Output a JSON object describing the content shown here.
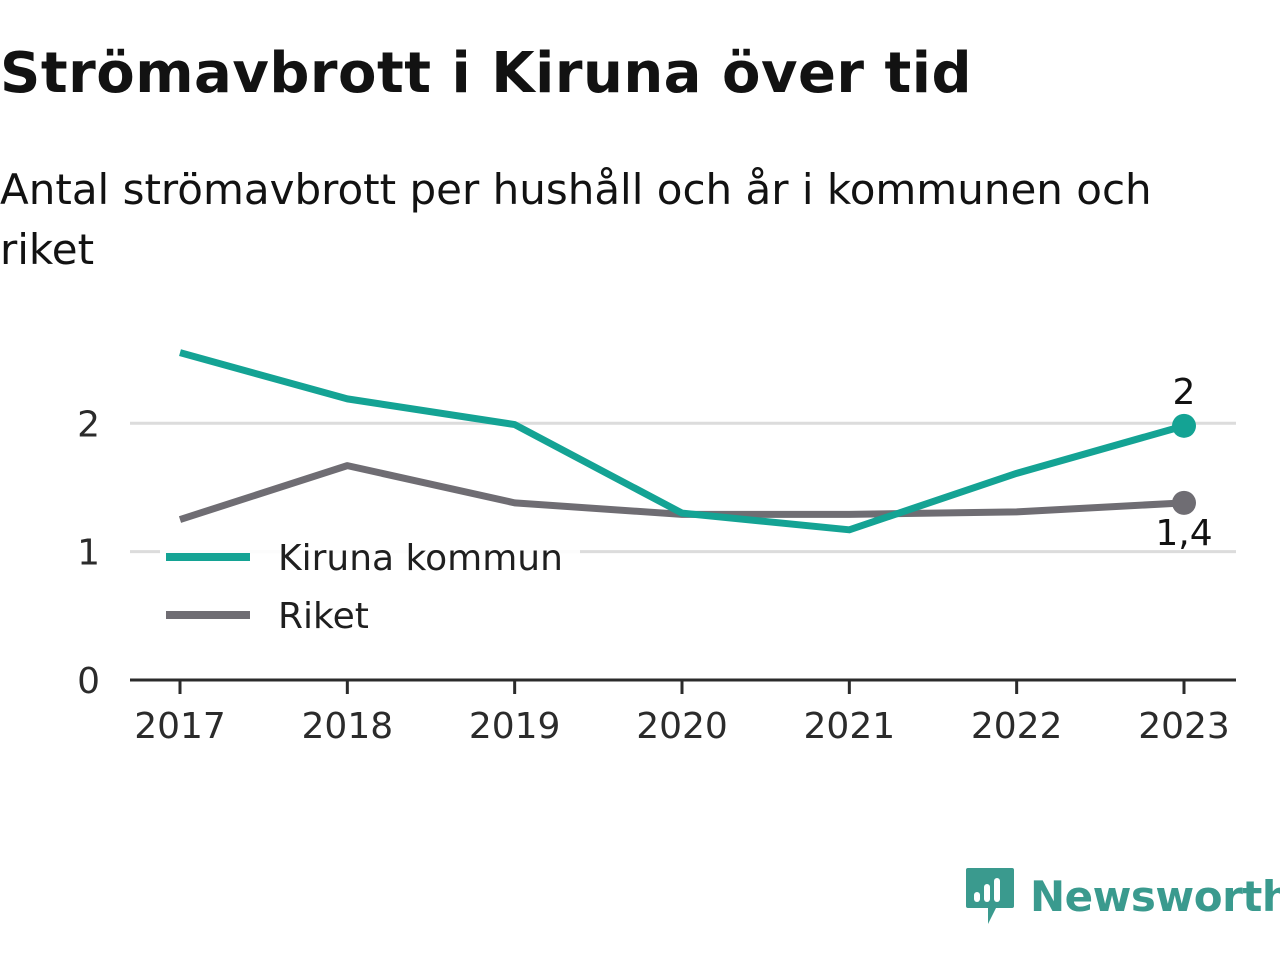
{
  "title": "Strömavbrott i Kiruna över tid",
  "subtitle": "Antal strömavbrott per hushåll och år i kommunen och riket",
  "brand": {
    "name": "Newsworthy",
    "color": "#3a9a8e",
    "icon": "newsworthy-logo-icon"
  },
  "chart_data": {
    "type": "line",
    "x": [
      "2017",
      "2018",
      "2019",
      "2020",
      "2021",
      "2022",
      "2023"
    ],
    "ylim": [
      0,
      2.75
    ],
    "yticks": [
      "0",
      "1",
      "2"
    ],
    "grid": true,
    "legend_position": "middle-left",
    "series": [
      {
        "name": "Kiruna kommun",
        "color": "#14a394",
        "values": [
          2.55,
          2.19,
          1.99,
          1.3,
          1.17,
          1.61,
          1.98
        ],
        "end_label": "2"
      },
      {
        "name": "Riket",
        "color": "#6f6d73",
        "values": [
          1.25,
          1.67,
          1.38,
          1.29,
          1.29,
          1.31,
          1.38
        ],
        "end_label": "1,4"
      }
    ]
  }
}
